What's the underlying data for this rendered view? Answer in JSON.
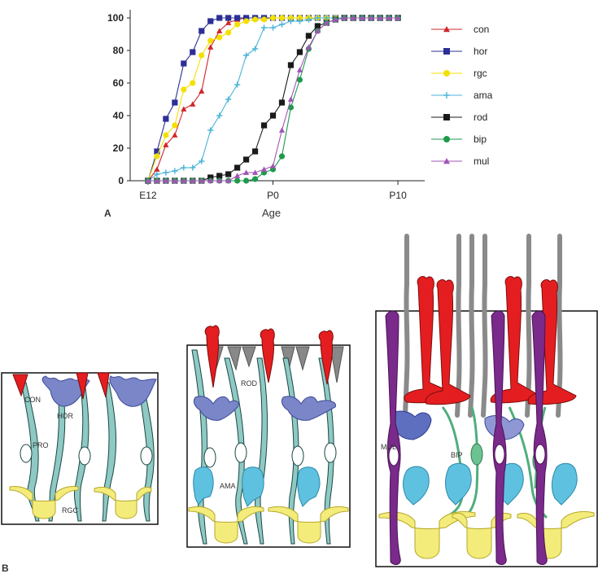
{
  "panel_labels": {
    "a": "A",
    "b": "B"
  },
  "colors": {
    "con": "#d0262a",
    "hor": "#2b2f97",
    "rgc": "#f4e000",
    "ama": "#4ab3d8",
    "rod": "#1a1a1a",
    "bip": "#1f9a4d",
    "mul": "#a255b5"
  },
  "chart_data": {
    "type": "line",
    "title": "",
    "xlabel": "Age",
    "ylabel": "",
    "x_ticks": [
      {
        "x": -7,
        "label": "E12"
      },
      {
        "x": 0,
        "label": "P0"
      },
      {
        "x": 7,
        "label": "P10"
      }
    ],
    "y_ticks": [
      0,
      20,
      40,
      60,
      80,
      100
    ],
    "xlim": [
      -8,
      8.5
    ],
    "ylim": [
      0,
      100
    ],
    "legend_position": "right",
    "series": [
      {
        "name": "con",
        "marker": "triangle",
        "color": "#d0262a",
        "x": [
          -7,
          -6.5,
          -6,
          -5.5,
          -5,
          -4.5,
          -4,
          -3.5,
          -3,
          -2.5,
          -2,
          -1.5,
          -1,
          -0.5,
          0,
          0.5,
          1,
          1.5,
          2,
          2.5,
          3,
          3.5,
          4,
          4.5,
          5,
          5.5,
          6,
          6.5,
          7
        ],
        "y": [
          0,
          7,
          22,
          28,
          44,
          47,
          55,
          82,
          92,
          97,
          99,
          100,
          100,
          100,
          100,
          100,
          100,
          100,
          100,
          100,
          100,
          100,
          100,
          100,
          100,
          100,
          100,
          100,
          100
        ]
      },
      {
        "name": "hor",
        "marker": "square",
        "color": "#2b2f97",
        "x": [
          -7,
          -6.5,
          -6,
          -5.5,
          -5,
          -4.5,
          -4,
          -3.5,
          -3,
          -2.5,
          -2,
          -1.5,
          -1,
          -0.5,
          0,
          0.5,
          1,
          1.5,
          2,
          2.5,
          3,
          3.5,
          4,
          4.5,
          5,
          5.5,
          6,
          6.5,
          7
        ],
        "y": [
          0,
          18,
          38,
          48,
          72,
          79,
          92,
          98,
          100,
          100,
          100,
          100,
          100,
          100,
          100,
          100,
          100,
          100,
          100,
          100,
          100,
          100,
          100,
          100,
          100,
          100,
          100,
          100,
          100
        ]
      },
      {
        "name": "rgc",
        "marker": "circle",
        "color": "#f4e000",
        "x": [
          -7,
          -6.5,
          -6,
          -5.5,
          -5,
          -4.5,
          -4,
          -3.5,
          -3,
          -2.5,
          -2,
          -1.5,
          -1,
          -0.5,
          0,
          0.5,
          1,
          1.5,
          2,
          2.5,
          3,
          3.5,
          4,
          4.5,
          5,
          5.5,
          6,
          6.5,
          7
        ],
        "y": [
          0,
          15,
          28,
          34,
          56,
          60,
          77,
          86,
          88,
          91,
          96,
          98,
          99,
          99,
          100,
          100,
          100,
          100,
          100,
          100,
          100,
          100,
          100,
          100,
          100,
          100,
          100,
          100,
          100
        ]
      },
      {
        "name": "ama",
        "marker": "plus",
        "color": "#4ab3d8",
        "x": [
          -7,
          -6.5,
          -6,
          -5.5,
          -5,
          -4.5,
          -4,
          -3.5,
          -3,
          -2.5,
          -2,
          -1.5,
          -1,
          -0.5,
          0,
          0.5,
          1,
          1.5,
          2,
          2.5,
          3,
          3.5,
          4,
          4.5,
          5,
          5.5,
          6,
          6.5,
          7
        ],
        "y": [
          0,
          4,
          5,
          6,
          8,
          8,
          12,
          31,
          40,
          50,
          59,
          77,
          81,
          94,
          94,
          96,
          98,
          98,
          99,
          100,
          100,
          100,
          100,
          100,
          100,
          100,
          100,
          100,
          100
        ]
      },
      {
        "name": "rod",
        "marker": "square",
        "color": "#1a1a1a",
        "x": [
          -7,
          -6.5,
          -6,
          -5.5,
          -5,
          -4.5,
          -4,
          -3.5,
          -3,
          -2.5,
          -2,
          -1.5,
          -1,
          -0.5,
          0,
          0.5,
          1,
          1.5,
          2,
          2.5,
          3,
          3.5,
          4,
          4.5,
          5,
          5.5,
          6,
          6.5,
          7
        ],
        "y": [
          0,
          0,
          0,
          0,
          0,
          0,
          0,
          2,
          3,
          4,
          8,
          13,
          18,
          34,
          40,
          48,
          71,
          79,
          89,
          95,
          97,
          99,
          100,
          100,
          100,
          100,
          100,
          100,
          100
        ]
      },
      {
        "name": "bip",
        "marker": "circle",
        "color": "#1f9a4d",
        "x": [
          -7,
          -6.5,
          -6,
          -5.5,
          -5,
          -4.5,
          -4,
          -3.5,
          -3,
          -2.5,
          -2,
          -1.5,
          -1,
          -0.5,
          0,
          0.5,
          1,
          1.5,
          2,
          2.5,
          3,
          3.5,
          4,
          4.5,
          5,
          5.5,
          6,
          6.5,
          7
        ],
        "y": [
          0,
          0,
          0,
          0,
          0,
          0,
          0,
          0,
          0,
          0,
          0,
          0,
          1,
          5,
          7,
          15,
          45,
          62,
          81,
          92,
          97,
          99,
          100,
          100,
          100,
          100,
          100,
          100,
          100
        ]
      },
      {
        "name": "mul",
        "marker": "triangle",
        "color": "#a255b5",
        "x": [
          -7,
          -6.5,
          -6,
          -5.5,
          -5,
          -4.5,
          -4,
          -3.5,
          -3,
          -2.5,
          -2,
          -1.5,
          -1,
          -0.5,
          0,
          0.5,
          1,
          1.5,
          2,
          2.5,
          3,
          3.5,
          4,
          4.5,
          5,
          5.5,
          6,
          6.5,
          7
        ],
        "y": [
          0,
          0,
          0,
          0,
          0,
          0,
          0,
          0,
          0,
          0,
          3,
          5,
          5,
          7,
          9,
          31,
          50,
          68,
          82,
          92,
          97,
          99,
          100,
          100,
          100,
          100,
          100,
          100,
          100
        ]
      }
    ]
  },
  "diagram": {
    "panel1": {
      "con": "CON",
      "hor": "HOR",
      "pro": "PRO",
      "rgc": "RGC"
    },
    "panel2": {
      "rod": "ROD",
      "ama": "AMA"
    },
    "panel3": {
      "mul": "MUL",
      "bip": "BIP"
    }
  }
}
